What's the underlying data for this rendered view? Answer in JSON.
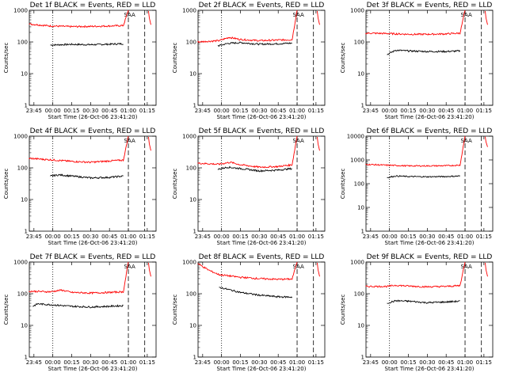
{
  "chart_data": [
    {
      "type": "line",
      "title": "Det 1f BLACK = Events, RED = LLD",
      "xlabel": "Start Time (26-Oct-06 23:41:20)",
      "ylabel": "Counts/sec",
      "x_ticks": [
        "23:45",
        "00:00",
        "00:15",
        "00:30",
        "00:45",
        "01:00",
        "01:15"
      ],
      "y_ticks": [
        "1",
        "10",
        "100",
        "1000"
      ],
      "ylim": [
        1,
        1000
      ],
      "y_scale": "log",
      "xlim": [
        "23:41:20",
        "01:22:00"
      ],
      "annotation": "SAA",
      "series": [
        {
          "name": "Events",
          "color": "#000000",
          "data": [
            [
              "23:58",
              80
            ],
            [
              "00:15",
              84
            ],
            [
              "00:30",
              82
            ],
            [
              "00:45",
              85
            ],
            [
              "00:56",
              88
            ]
          ]
        },
        {
          "name": "LLD",
          "color": "#ff0000",
          "data": [
            [
              "23:41",
              370
            ],
            [
              "23:58",
              320
            ],
            [
              "00:15",
              305
            ],
            [
              "00:30",
              310
            ],
            [
              "00:45",
              320
            ],
            [
              "00:56",
              330
            ],
            [
              "01:00",
              1000
            ]
          ]
        }
      ]
    },
    {
      "type": "line",
      "title": "Det 2f BLACK = Events, RED = LLD",
      "xlabel": "Start Time (26-Oct-06 23:41:20)",
      "ylabel": "Counts/sec",
      "x_ticks": [
        "23:45",
        "00:00",
        "00:15",
        "00:30",
        "00:45",
        "01:00",
        "01:15"
      ],
      "y_ticks": [
        "1",
        "10",
        "100",
        "1000"
      ],
      "ylim": [
        1,
        1000
      ],
      "y_scale": "log",
      "xlim": [
        "23:41:20",
        "01:22:00"
      ],
      "annotation": "SAA",
      "series": [
        {
          "name": "Events",
          "color": "#000000",
          "data": [
            [
              "23:57",
              75
            ],
            [
              "00:05",
              90
            ],
            [
              "00:15",
              95
            ],
            [
              "00:30",
              85
            ],
            [
              "00:45",
              88
            ],
            [
              "00:56",
              92
            ]
          ]
        },
        {
          "name": "LLD",
          "color": "#ff0000",
          "data": [
            [
              "23:41",
              100
            ],
            [
              "23:58",
              110
            ],
            [
              "00:06",
              140
            ],
            [
              "00:15",
              120
            ],
            [
              "00:30",
              110
            ],
            [
              "00:45",
              115
            ],
            [
              "00:56",
              118
            ],
            [
              "01:00",
              1000
            ]
          ]
        }
      ]
    },
    {
      "type": "line",
      "title": "Det 3f BLACK = Events, RED = LLD",
      "xlabel": "Start Time (26-Oct-06 23:41:20)",
      "ylabel": "Counts/sec",
      "x_ticks": [
        "23:45",
        "00:00",
        "00:15",
        "00:30",
        "00:45",
        "01:00",
        "01:15"
      ],
      "y_ticks": [
        "1",
        "10",
        "100",
        "1000"
      ],
      "ylim": [
        1,
        1000
      ],
      "y_scale": "log",
      "xlim": [
        "23:41:20",
        "01:22:00"
      ],
      "annotation": "SAA",
      "series": [
        {
          "name": "Events",
          "color": "#000000",
          "data": [
            [
              "23:58",
              40
            ],
            [
              "00:05",
              55
            ],
            [
              "00:15",
              52
            ],
            [
              "00:30",
              50
            ],
            [
              "00:45",
              50
            ],
            [
              "00:56",
              52
            ]
          ]
        },
        {
          "name": "LLD",
          "color": "#ff0000",
          "data": [
            [
              "23:41",
              190
            ],
            [
              "23:58",
              185
            ],
            [
              "00:15",
              175
            ],
            [
              "00:30",
              175
            ],
            [
              "00:45",
              180
            ],
            [
              "00:56",
              190
            ],
            [
              "01:00",
              1000
            ]
          ]
        }
      ]
    },
    {
      "type": "line",
      "title": "Det 4f BLACK = Events, RED = LLD",
      "xlabel": "Start Time (26-Oct-06 23:41:20)",
      "ylabel": "Counts/sec",
      "x_ticks": [
        "23:45",
        "00:00",
        "00:15",
        "00:30",
        "00:45",
        "01:00",
        "01:15"
      ],
      "y_ticks": [
        "1",
        "10",
        "100",
        "1000"
      ],
      "ylim": [
        1,
        1000
      ],
      "y_scale": "log",
      "xlim": [
        "23:41:20",
        "01:22:00"
      ],
      "annotation": "SAA",
      "series": [
        {
          "name": "Events",
          "color": "#000000",
          "data": [
            [
              "23:58",
              55
            ],
            [
              "00:05",
              60
            ],
            [
              "00:15",
              55
            ],
            [
              "00:30",
              48
            ],
            [
              "00:45",
              50
            ],
            [
              "00:56",
              55
            ]
          ]
        },
        {
          "name": "LLD",
          "color": "#ff0000",
          "data": [
            [
              "23:41",
              200
            ],
            [
              "23:58",
              180
            ],
            [
              "00:15",
              160
            ],
            [
              "00:30",
              150
            ],
            [
              "00:45",
              165
            ],
            [
              "00:56",
              175
            ],
            [
              "01:00",
              1000
            ]
          ]
        }
      ]
    },
    {
      "type": "line",
      "title": "Det 5f BLACK = Events, RED = LLD",
      "xlabel": "Start Time (26-Oct-06 23:41:20)",
      "ylabel": "Counts/sec",
      "x_ticks": [
        "23:45",
        "00:00",
        "00:15",
        "00:30",
        "00:45",
        "01:00",
        "01:15"
      ],
      "y_ticks": [
        "1",
        "10",
        "100",
        "1000"
      ],
      "ylim": [
        1,
        1000
      ],
      "y_scale": "log",
      "xlim": [
        "23:41:20",
        "01:22:00"
      ],
      "annotation": "SAA",
      "series": [
        {
          "name": "Events",
          "color": "#000000",
          "data": [
            [
              "23:57",
              90
            ],
            [
              "00:05",
              105
            ],
            [
              "00:15",
              95
            ],
            [
              "00:30",
              80
            ],
            [
              "00:45",
              85
            ],
            [
              "00:56",
              95
            ]
          ]
        },
        {
          "name": "LLD",
          "color": "#ff0000",
          "data": [
            [
              "23:41",
              140
            ],
            [
              "23:58",
              130
            ],
            [
              "00:07",
              150
            ],
            [
              "00:15",
              125
            ],
            [
              "00:30",
              105
            ],
            [
              "00:45",
              110
            ],
            [
              "00:56",
              125
            ],
            [
              "01:00",
              1000
            ]
          ]
        }
      ]
    },
    {
      "type": "line",
      "title": "Det 6f BLACK = Events, RED = LLD",
      "xlabel": "Start Time (26-Oct-06 23:41:20)",
      "ylabel": "Counts/sec",
      "x_ticks": [
        "23:45",
        "00:00",
        "00:15",
        "00:30",
        "00:45",
        "01:00",
        "01:15"
      ],
      "y_ticks": [
        "1",
        "10",
        "100",
        "1000",
        "10000"
      ],
      "ylim": [
        1,
        10000
      ],
      "y_scale": "log",
      "xlim": [
        "23:41:20",
        "01:22:00"
      ],
      "annotation": "SAA",
      "series": [
        {
          "name": "Events",
          "color": "#000000",
          "data": [
            [
              "23:58",
              180
            ],
            [
              "00:05",
              210
            ],
            [
              "00:15",
              200
            ],
            [
              "00:30",
              195
            ],
            [
              "00:45",
              200
            ],
            [
              "00:56",
              210
            ]
          ]
        },
        {
          "name": "LLD",
          "color": "#ff0000",
          "data": [
            [
              "23:41",
              650
            ],
            [
              "23:58",
              600
            ],
            [
              "00:15",
              560
            ],
            [
              "00:30",
              560
            ],
            [
              "00:45",
              570
            ],
            [
              "00:56",
              600
            ],
            [
              "01:00",
              10000
            ]
          ]
        }
      ]
    },
    {
      "type": "line",
      "title": "Det 7f BLACK = Events, RED = LLD",
      "xlabel": "Start Time (26-Oct-06 23:41:20)",
      "ylabel": "Counts/sec",
      "x_ticks": [
        "23:45",
        "00:00",
        "00:15",
        "00:30",
        "00:45",
        "01:00",
        "01:15"
      ],
      "y_ticks": [
        "1",
        "10",
        "100",
        "1000"
      ],
      "ylim": [
        1,
        1000
      ],
      "y_scale": "log",
      "xlim": [
        "23:41:20",
        "01:22:00"
      ],
      "annotation": "SAA",
      "series": [
        {
          "name": "Events",
          "color": "#000000",
          "data": [
            [
              "23:44",
              40
            ],
            [
              "23:48",
              48
            ],
            [
              "23:58",
              45
            ],
            [
              "00:15",
              40
            ],
            [
              "00:30",
              38
            ],
            [
              "00:45",
              40
            ],
            [
              "00:56",
              42
            ]
          ]
        },
        {
          "name": "LLD",
          "color": "#ff0000",
          "data": [
            [
              "23:41",
              120
            ],
            [
              "23:58",
              115
            ],
            [
              "00:07",
              130
            ],
            [
              "00:15",
              110
            ],
            [
              "00:30",
              105
            ],
            [
              "00:45",
              110
            ],
            [
              "00:56",
              115
            ],
            [
              "01:00",
              1000
            ]
          ]
        }
      ]
    },
    {
      "type": "line",
      "title": "Det 8f BLACK = Events, RED = LLD",
      "xlabel": "Start Time (26-Oct-06 23:41:20)",
      "ylabel": "Counts/sec",
      "x_ticks": [
        "23:45",
        "00:00",
        "00:15",
        "00:30",
        "00:45",
        "01:00",
        "01:15"
      ],
      "y_ticks": [
        "1",
        "10",
        "100",
        "1000"
      ],
      "ylim": [
        1,
        1000
      ],
      "y_scale": "log",
      "xlim": [
        "23:41:20",
        "01:22:00"
      ],
      "annotation": "SAA",
      "series": [
        {
          "name": "Events",
          "color": "#000000",
          "data": [
            [
              "23:58",
              160
            ],
            [
              "00:15",
              110
            ],
            [
              "00:30",
              90
            ],
            [
              "00:45",
              80
            ],
            [
              "00:56",
              78
            ]
          ]
        },
        {
          "name": "LLD",
          "color": "#ff0000",
          "data": [
            [
              "23:41",
              900
            ],
            [
              "23:50",
              550
            ],
            [
              "23:58",
              400
            ],
            [
              "00:15",
              330
            ],
            [
              "00:30",
              300
            ],
            [
              "00:45",
              285
            ],
            [
              "00:56",
              290
            ],
            [
              "01:00",
              1000
            ]
          ]
        }
      ]
    },
    {
      "type": "line",
      "title": "Det 9f BLACK = Events, RED = LLD",
      "xlabel": "Start Time (26-Oct-06 23:41:20)",
      "ylabel": "Counts/sec",
      "x_ticks": [
        "23:45",
        "00:00",
        "00:15",
        "00:30",
        "00:45",
        "01:00",
        "01:15"
      ],
      "y_ticks": [
        "1",
        "10",
        "100",
        "1000"
      ],
      "ylim": [
        1,
        1000
      ],
      "y_scale": "log",
      "xlim": [
        "23:41:20",
        "01:22:00"
      ],
      "annotation": "SAA",
      "series": [
        {
          "name": "Events",
          "color": "#000000",
          "data": [
            [
              "23:58",
              50
            ],
            [
              "00:05",
              60
            ],
            [
              "00:15",
              58
            ],
            [
              "00:30",
              52
            ],
            [
              "00:45",
              55
            ],
            [
              "00:56",
              58
            ]
          ]
        },
        {
          "name": "LLD",
          "color": "#ff0000",
          "data": [
            [
              "23:41",
              170
            ],
            [
              "23:58",
              170
            ],
            [
              "00:05",
              185
            ],
            [
              "00:15",
              175
            ],
            [
              "00:30",
              165
            ],
            [
              "00:45",
              170
            ],
            [
              "00:56",
              180
            ],
            [
              "01:00",
              1000
            ]
          ]
        }
      ]
    }
  ]
}
